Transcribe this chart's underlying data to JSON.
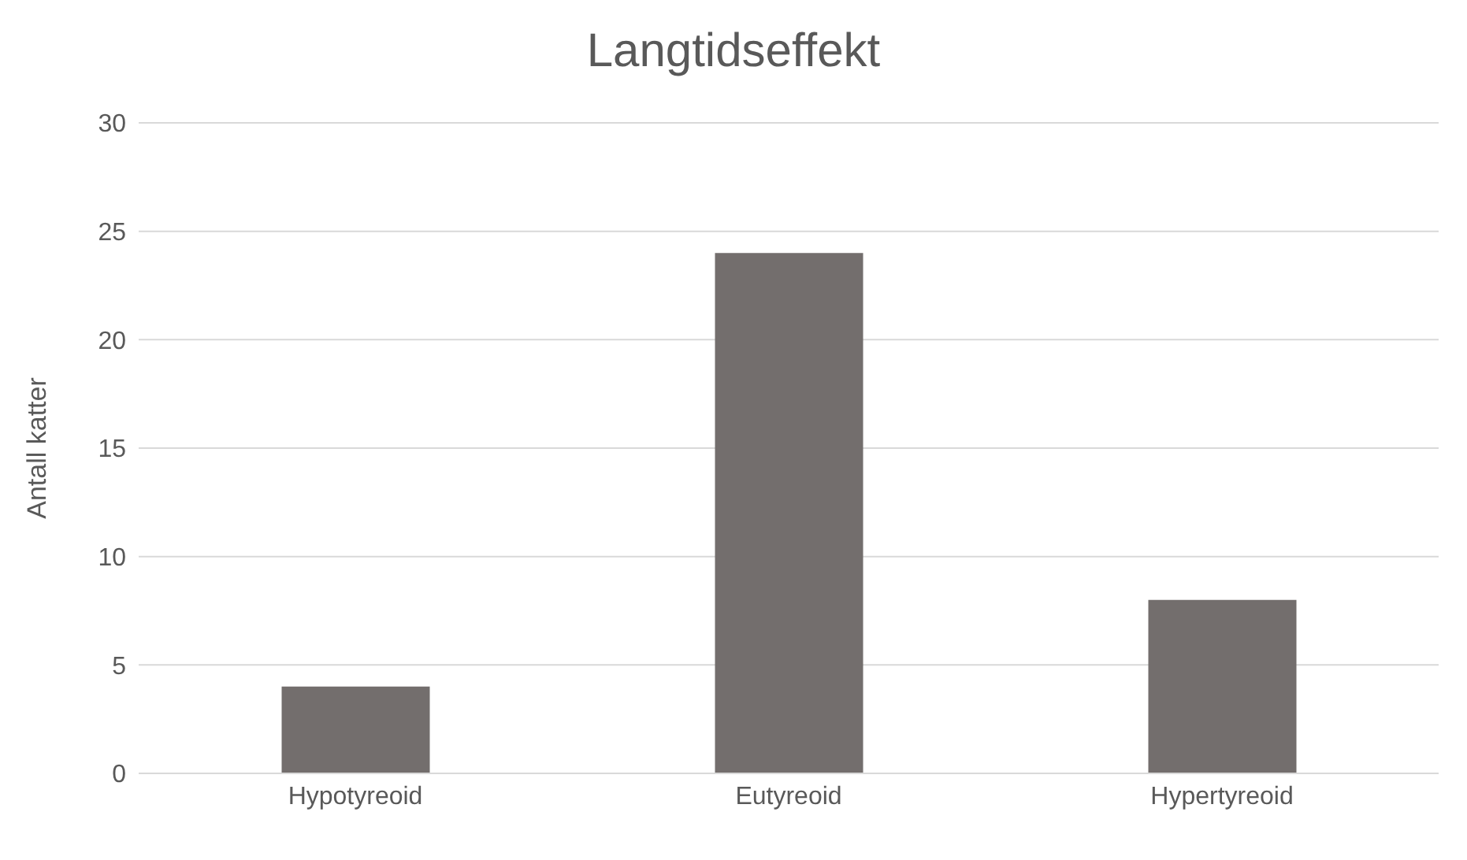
{
  "chart_data": {
    "type": "bar",
    "title": "Langtidseffekt",
    "ylabel": "Antall katter",
    "categories": [
      "Hypotyreoid",
      "Eutyreoid",
      "Hypertyreoid"
    ],
    "values": [
      4,
      24,
      8
    ],
    "color": "#736e6d",
    "ylim": [
      0,
      30
    ],
    "yticks": [
      0,
      5,
      10,
      15,
      20,
      25,
      30
    ],
    "grid": "y"
  }
}
